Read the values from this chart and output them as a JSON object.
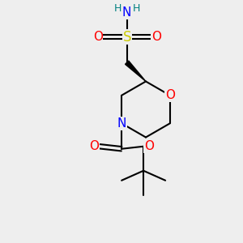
{
  "bg_color": "#eeeeee",
  "atom_colors": {
    "C": "#000000",
    "N": "#0000ff",
    "O": "#ff0000",
    "S": "#cccc00",
    "H": "#008080"
  },
  "bond_color": "#000000",
  "bond_lw": 1.5,
  "figsize": [
    3.0,
    3.0
  ],
  "dpi": 100,
  "xlim": [
    0,
    10
  ],
  "ylim": [
    0,
    10
  ]
}
